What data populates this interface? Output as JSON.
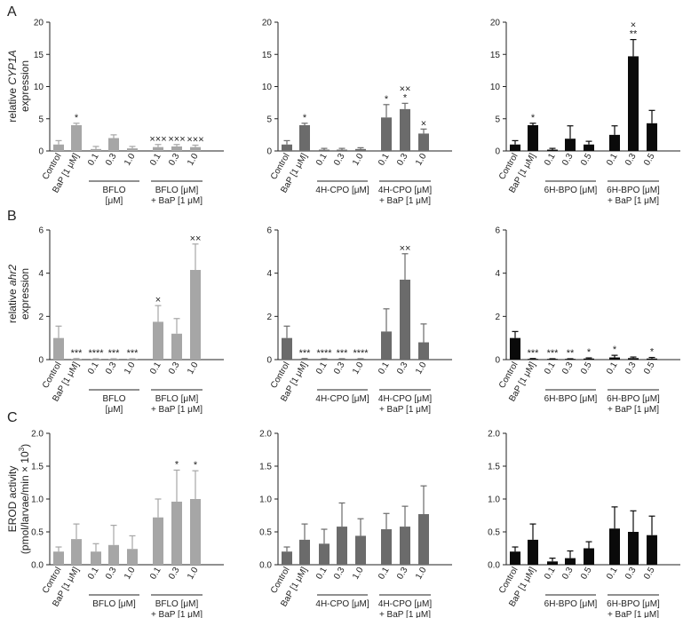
{
  "panel_labels": [
    "A",
    "B",
    "C"
  ],
  "row_ylabels": [
    [
      "relative ",
      "CYP1A",
      " expression"
    ],
    [
      "relative ",
      "ahr2",
      " expression"
    ],
    [
      "EROD activity",
      "(pmol/larvae/min × 10",
      "3",
      ")"
    ]
  ],
  "colors": {
    "BFLO": "#a6a6a6",
    "4H-CPO": "#6b6b6b",
    "6H-BPO": "#0a0a0a"
  },
  "chart_data": [
    {
      "type": "bar",
      "row": 0,
      "col": 0,
      "ylim": [
        0,
        20
      ],
      "yticks": [
        0,
        5,
        10,
        15,
        20
      ],
      "categories": [
        "Control",
        "BaP [1 μM]",
        "0.1",
        "0.3",
        "1.0",
        "0.1",
        "0.3",
        "1.0"
      ],
      "values": [
        1.0,
        4.0,
        0.3,
        2.0,
        0.4,
        0.6,
        0.7,
        0.6
      ],
      "errors": [
        0.6,
        0.3,
        0.4,
        0.5,
        0.3,
        0.4,
        0.3,
        0.3
      ],
      "sig": [
        "",
        "*",
        "",
        "",
        "",
        "×××",
        "×××",
        "×××"
      ],
      "groups": [
        [
          "BFLO",
          "[μM]"
        ],
        [
          "BFLO [μM]",
          "+ BaP [1 μM]"
        ]
      ]
    },
    {
      "type": "bar",
      "row": 0,
      "col": 1,
      "ylim": [
        0,
        20
      ],
      "yticks": [
        0,
        5,
        10,
        15,
        20
      ],
      "categories": [
        "Control",
        "BaP [1 μM]",
        "0.1",
        "0.3",
        "1.0",
        "0.1",
        "0.3",
        "1.0"
      ],
      "values": [
        1.0,
        4.0,
        0.2,
        0.2,
        0.3,
        5.2,
        6.5,
        2.7
      ],
      "errors": [
        0.6,
        0.3,
        0.2,
        0.2,
        0.2,
        2.0,
        0.9,
        0.7
      ],
      "sig": [
        "",
        "*",
        "",
        "",
        "",
        "*",
        "××|*",
        "×"
      ],
      "groups": [
        [
          "4H-CPO [μM]"
        ],
        [
          "4H-CPO [μM]",
          "+ BaP [1 μM]"
        ]
      ]
    },
    {
      "type": "bar",
      "row": 0,
      "col": 2,
      "ylim": [
        0,
        20
      ],
      "yticks": [
        0,
        5,
        10,
        15,
        20
      ],
      "categories": [
        "Control",
        "BaP [1 μM]",
        "0.1",
        "0.3",
        "0.5",
        "0.1",
        "0.3",
        "0.5"
      ],
      "values": [
        1.0,
        4.0,
        0.2,
        1.9,
        1.0,
        2.5,
        14.7,
        4.3
      ],
      "errors": [
        0.6,
        0.3,
        0.2,
        2.0,
        0.5,
        1.4,
        2.6,
        2.0
      ],
      "sig": [
        "",
        "*",
        "",
        "",
        "",
        "",
        "×|**",
        ""
      ],
      "groups": [
        [
          "6H-BPO [μM]"
        ],
        [
          "6H-BPO [μM]",
          "+ BaP [1 μM]"
        ]
      ]
    },
    {
      "type": "bar",
      "row": 1,
      "col": 0,
      "ylim": [
        0,
        6
      ],
      "yticks": [
        0,
        2,
        4,
        6
      ],
      "categories": [
        "Control",
        "BaP [1 μM]",
        "0.1",
        "0.3",
        "1.0",
        "0.1",
        "0.3",
        "1.0"
      ],
      "values": [
        1.0,
        0.03,
        0.02,
        0.02,
        0.02,
        1.75,
        1.2,
        4.15
      ],
      "errors": [
        0.55,
        0.02,
        0.02,
        0.02,
        0.02,
        0.75,
        0.7,
        1.2
      ],
      "sig": [
        "",
        "***",
        "****",
        "***",
        "***",
        "×",
        "",
        "××"
      ],
      "groups": [
        [
          "BFLO",
          "[μM]"
        ],
        [
          "BFLO [μM]",
          "+ BaP [1 μM]"
        ]
      ]
    },
    {
      "type": "bar",
      "row": 1,
      "col": 1,
      "ylim": [
        0,
        6
      ],
      "yticks": [
        0,
        2,
        4,
        6
      ],
      "categories": [
        "Control",
        "BaP [1 μM]",
        "0.1",
        "0.3",
        "1.0",
        "0.1",
        "0.3",
        "1.0"
      ],
      "values": [
        1.0,
        0.03,
        0.02,
        0.02,
        0.02,
        1.3,
        3.7,
        0.8
      ],
      "errors": [
        0.55,
        0.02,
        0.02,
        0.02,
        0.02,
        1.05,
        1.2,
        0.85
      ],
      "sig": [
        "",
        "***",
        "****",
        "***",
        "****",
        "",
        "××",
        ""
      ],
      "groups": [
        [
          "4H-CPO [μM]"
        ],
        [
          "4H-CPO [μM]",
          "+ BaP [1 μM]"
        ]
      ]
    },
    {
      "type": "bar",
      "row": 1,
      "col": 2,
      "ylim": [
        0,
        6
      ],
      "yticks": [
        0,
        2,
        4,
        6
      ],
      "categories": [
        "Control",
        "BaP [1 μM]",
        "0.1",
        "0.3",
        "0.5",
        "0.1",
        "0.3",
        "0.5"
      ],
      "values": [
        1.0,
        0.03,
        0.02,
        0.02,
        0.05,
        0.1,
        0.07,
        0.05
      ],
      "errors": [
        0.3,
        0.02,
        0.02,
        0.02,
        0.03,
        0.1,
        0.05,
        0.05
      ],
      "sig": [
        "",
        "***",
        "***",
        "**",
        "*",
        "*",
        "",
        "*"
      ],
      "groups": [
        [
          "6H-BPO [μM]"
        ],
        [
          "6H-BPO [μM]",
          "+ BaP [1 μM]"
        ]
      ]
    },
    {
      "type": "bar",
      "row": 2,
      "col": 0,
      "ylim": [
        0,
        2
      ],
      "yticks": [
        0,
        0.5,
        1.0,
        1.5,
        2.0
      ],
      "categories": [
        "Control",
        "BaP [1 μM]",
        "0.1",
        "0.3",
        "1.0",
        "0.1",
        "0.3",
        "1.0"
      ],
      "values": [
        0.2,
        0.39,
        0.2,
        0.3,
        0.24,
        0.72,
        0.96,
        1.0
      ],
      "errors": [
        0.07,
        0.23,
        0.12,
        0.3,
        0.2,
        0.28,
        0.48,
        0.43
      ],
      "sig": [
        "",
        "",
        "",
        "",
        "",
        "",
        "*",
        "*"
      ],
      "groups": [
        [
          "BFLO [μM]"
        ],
        [
          "BFLO [μM]",
          "+ BaP [1 μM]"
        ]
      ]
    },
    {
      "type": "bar",
      "row": 2,
      "col": 1,
      "ylim": [
        0,
        2
      ],
      "yticks": [
        0,
        0.5,
        1.0,
        1.5,
        2.0
      ],
      "categories": [
        "Control",
        "BaP [1 μM]",
        "0.1",
        "0.3",
        "1.0",
        "0.1",
        "0.3",
        "1.0"
      ],
      "values": [
        0.2,
        0.38,
        0.32,
        0.58,
        0.44,
        0.54,
        0.58,
        0.77
      ],
      "errors": [
        0.07,
        0.24,
        0.22,
        0.36,
        0.26,
        0.24,
        0.31,
        0.43
      ],
      "sig": [
        "",
        "",
        "",
        "",
        "",
        "",
        "",
        ""
      ],
      "groups": [
        [
          "4H-CPO [μM]"
        ],
        [
          "4H-CPO [μM]",
          "+ BaP [1 μM]"
        ]
      ]
    },
    {
      "type": "bar",
      "row": 2,
      "col": 2,
      "ylim": [
        0,
        2
      ],
      "yticks": [
        0,
        0.5,
        1.0,
        1.5,
        2.0
      ],
      "categories": [
        "Control",
        "BaP [1 μM]",
        "0.1",
        "0.3",
        "0.5",
        "0.1",
        "0.3",
        "0.5"
      ],
      "values": [
        0.2,
        0.38,
        0.05,
        0.1,
        0.25,
        0.55,
        0.5,
        0.45
      ],
      "errors": [
        0.07,
        0.24,
        0.05,
        0.11,
        0.1,
        0.33,
        0.32,
        0.29
      ],
      "sig": [
        "",
        "",
        "",
        "",
        "",
        "",
        "",
        ""
      ],
      "groups": [
        [
          "6H-BPO [μM]"
        ],
        [
          "6H-BPO [μM]",
          "+ BaP [1 μM]"
        ]
      ]
    }
  ]
}
